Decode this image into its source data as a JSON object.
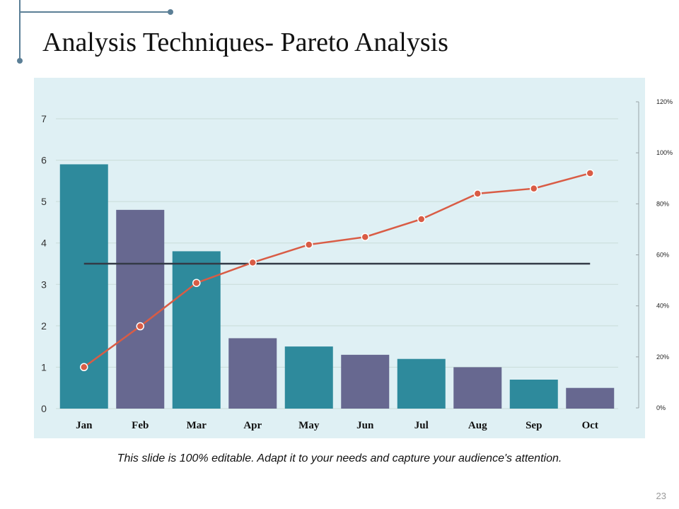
{
  "slide": {
    "title": "Analysis Techniques- Pareto Analysis",
    "caption": "This slide is 100% editable. Adapt it to your needs and capture your audience's attention.",
    "page_number": "23"
  },
  "colors": {
    "bar_teal": "#2e8a9c",
    "bar_purple": "#676890",
    "line": "#d95c45",
    "threshold": "#333a46",
    "plot_background": "#dff0f4",
    "accent": "#5b7f96"
  },
  "chart_data": {
    "type": "bar",
    "title": "",
    "categories": [
      "Jan",
      "Feb",
      "Mar",
      "Apr",
      "May",
      "Jun",
      "Jul",
      "Aug",
      "Sep",
      "Oct"
    ],
    "series": [
      {
        "name": "",
        "type": "bar",
        "axis": "left",
        "values": [
          5.9,
          4.8,
          3.8,
          1.7,
          1.5,
          1.3,
          1.2,
          1.0,
          0.7,
          0.5
        ]
      },
      {
        "name": "",
        "type": "line",
        "axis": "right",
        "values": [
          16,
          32,
          49,
          57,
          64,
          67,
          74,
          84,
          86,
          92
        ]
      },
      {
        "name": "",
        "type": "line",
        "axis": "left",
        "values": [
          3.5,
          3.5,
          3.5,
          3.5,
          3.5,
          3.5,
          3.5,
          3.5,
          3.5,
          3.5
        ]
      }
    ],
    "ylim": [
      0,
      7
    ],
    "y_ticks": [
      "0",
      "1",
      "2",
      "3",
      "4",
      "5",
      "6",
      "7"
    ],
    "y2lim": [
      0,
      120
    ],
    "y2_ticks": [
      "0%",
      "20%",
      "40%",
      "60%",
      "80%",
      "100%",
      "120%"
    ],
    "grid": true,
    "legend": "none"
  }
}
